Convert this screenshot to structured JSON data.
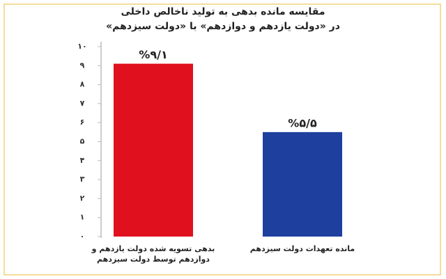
{
  "chart_data": {
    "type": "bar",
    "title": "مقایسه مانده بدهی به تولید ناخالص داخلی",
    "subtitle": "در «دولت یازدهم و دوازدهم» با «دولت سیزدهم»",
    "categories": [
      "بدهی تسویه شده دولت یازدهم و دوازدهم توسط دولت سیزدهم",
      "مانده تعهدات دولت سیزدهم"
    ],
    "values": [
      9.1,
      5.5
    ],
    "value_labels": [
      "%۹/۱",
      "%۵/۵"
    ],
    "colors": [
      "#e0101e",
      "#1e3f9e"
    ],
    "ylim": [
      0,
      10
    ],
    "yticks": [
      {
        "value": 0,
        "label": "۰"
      },
      {
        "value": 1,
        "label": "۱"
      },
      {
        "value": 2,
        "label": "۲"
      },
      {
        "value": 3,
        "label": "۳"
      },
      {
        "value": 4,
        "label": "۴"
      },
      {
        "value": 5,
        "label": "۵"
      },
      {
        "value": 6,
        "label": "۶"
      },
      {
        "value": 7,
        "label": "۷"
      },
      {
        "value": 8,
        "label": "۸"
      },
      {
        "value": 9,
        "label": "۹"
      },
      {
        "value": 10,
        "label": "۱۰"
      }
    ],
    "grid": false
  }
}
